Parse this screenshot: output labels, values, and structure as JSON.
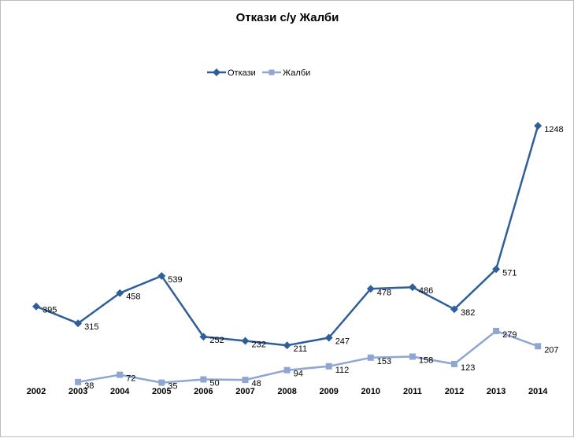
{
  "chart_data": {
    "type": "line",
    "title": "Откази с/у Жалби",
    "categories": [
      "2002",
      "2003",
      "2004",
      "2005",
      "2006",
      "2007",
      "2008",
      "2009",
      "2010",
      "2011",
      "2012",
      "2013",
      "2014"
    ],
    "series": [
      {
        "name": "Откази",
        "color": "#2e5f98",
        "marker": "diamond",
        "values": [
          395,
          315,
          458,
          539,
          252,
          232,
          211,
          247,
          478,
          486,
          382,
          571,
          1248
        ]
      },
      {
        "name": "Жалби",
        "color": "#8fa5d2",
        "marker": "square",
        "values": [
          null,
          38,
          72,
          35,
          50,
          48,
          94,
          112,
          153,
          158,
          123,
          279,
          207
        ]
      }
    ],
    "legend": "top-center",
    "grid": false,
    "xlabel": "",
    "ylabel": "",
    "ylim": [
      0,
      1300
    ]
  }
}
